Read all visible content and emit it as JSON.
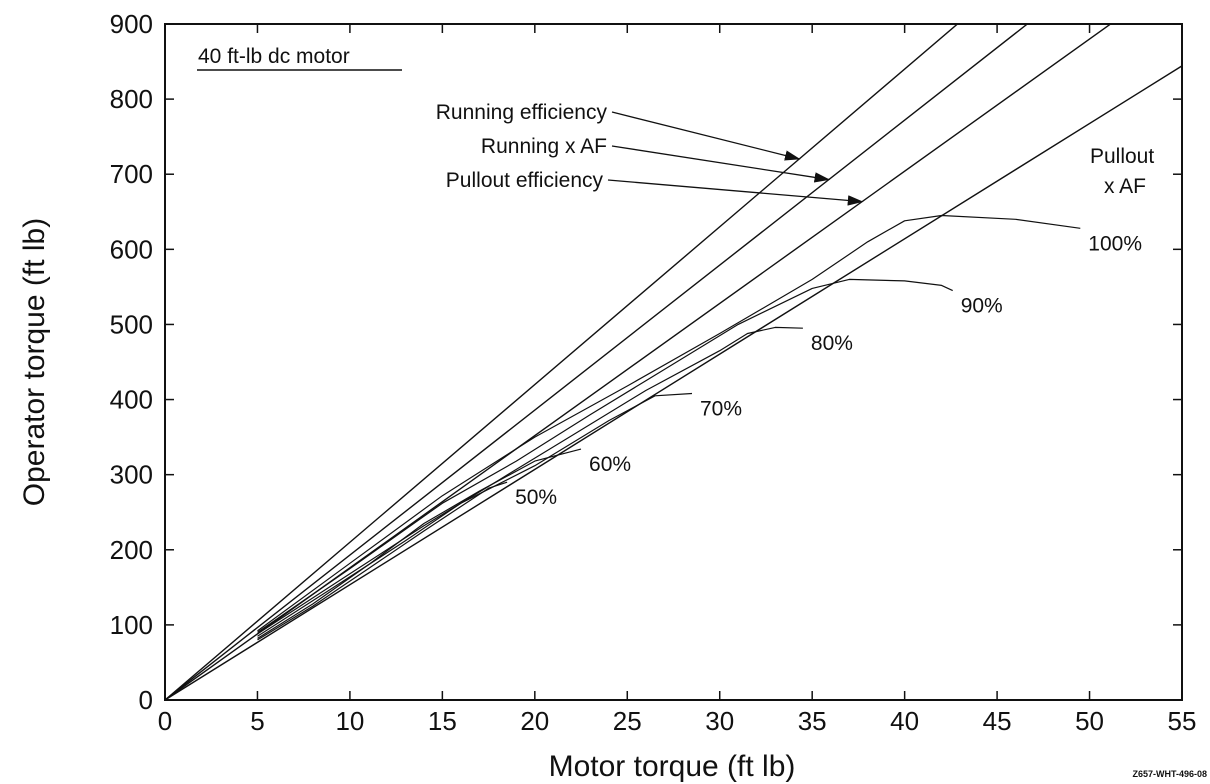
{
  "chart_data": {
    "type": "line",
    "xlabel": "Motor torque (ft lb)",
    "ylabel": "Operator torque (ft lb)",
    "xlim": [
      0,
      55
    ],
    "ylim": [
      0,
      900
    ],
    "xticks": [
      0,
      5,
      10,
      15,
      20,
      25,
      30,
      35,
      40,
      45,
      50,
      55
    ],
    "yticks": [
      0,
      100,
      200,
      300,
      400,
      500,
      600,
      700,
      800,
      900
    ],
    "grid": false,
    "box_label": "40 ft-lb dc motor",
    "figure_id": "Z657-WHT-496-08",
    "reference_lines": [
      {
        "label": "Running efficiency",
        "slope": 21.0
      },
      {
        "label": "Running x AF",
        "slope": 19.3
      },
      {
        "label": "Pullout efficiency",
        "slope": 17.6
      },
      {
        "label": "Pullout\nx AF",
        "slope": 15.35
      }
    ],
    "series": [
      {
        "name": "50%",
        "x": [
          5,
          8,
          11,
          14,
          17.5,
          18.5
        ],
        "y": [
          80,
          125,
          175,
          225,
          282,
          290
        ]
      },
      {
        "name": "60%",
        "x": [
          5,
          8,
          11,
          14,
          17,
          20,
          22.5
        ],
        "y": [
          82,
          128,
          180,
          235,
          278,
          318,
          334
        ]
      },
      {
        "name": "70%",
        "x": [
          5,
          9,
          13,
          16,
          20,
          24,
          26.5,
          28.5
        ],
        "y": [
          85,
          148,
          212,
          262,
          312,
          372,
          405,
          408
        ]
      },
      {
        "name": "80%",
        "x": [
          5,
          10,
          14,
          18,
          22,
          26,
          30,
          31.5,
          33,
          34.5
        ],
        "y": [
          88,
          168,
          232,
          292,
          352,
          412,
          465,
          488,
          496,
          495
        ]
      },
      {
        "name": "90%",
        "x": [
          5,
          10,
          15,
          19,
          23,
          27,
          31,
          35,
          37,
          40,
          42,
          42.6
        ],
        "y": [
          90,
          175,
          262,
          318,
          380,
          440,
          500,
          548,
          560,
          558,
          552,
          545
        ]
      },
      {
        "name": "100%",
        "x": [
          5,
          10,
          15,
          20,
          25,
          30,
          35,
          38,
          40,
          42,
          46,
          49.5
        ],
        "y": [
          92,
          182,
          272,
          350,
          418,
          488,
          560,
          610,
          638,
          645,
          640,
          628
        ]
      }
    ]
  }
}
